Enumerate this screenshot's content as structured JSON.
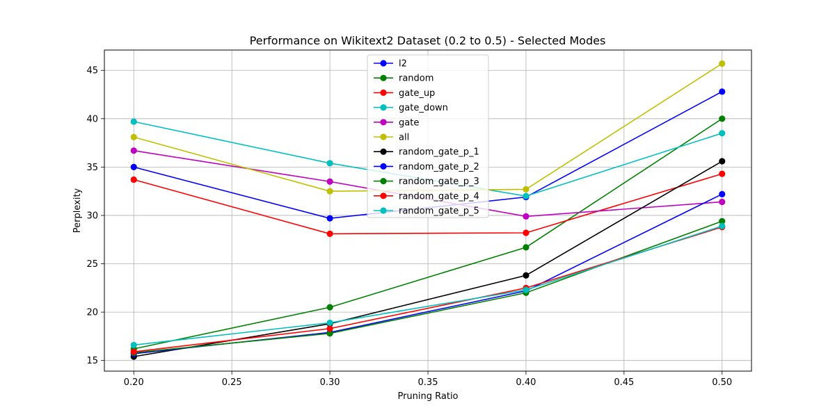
{
  "chart_data": {
    "type": "line",
    "title": "Performance on Wikitext2 Dataset (0.2 to 0.5) - Selected Modes",
    "xlabel": "Pruning Ratio",
    "ylabel": "Perplexity",
    "x": [
      0.2,
      0.3,
      0.4,
      0.5
    ],
    "xlim": [
      0.185,
      0.515
    ],
    "ylim": [
      13.9,
      47.1
    ],
    "xticks": [
      0.2,
      0.25,
      0.3,
      0.35,
      0.4,
      0.45,
      0.5
    ],
    "xtick_labels": [
      "0.20",
      "0.25",
      "0.30",
      "0.35",
      "0.40",
      "0.45",
      "0.50"
    ],
    "yticks": [
      15,
      20,
      25,
      30,
      35,
      40,
      45
    ],
    "ytick_labels": [
      "15",
      "20",
      "25",
      "30",
      "35",
      "40",
      "45"
    ],
    "grid": true,
    "legend_position": "top-center",
    "series": [
      {
        "name": "l2",
        "color": "#0000ff",
        "values": [
          35.0,
          29.7,
          31.9,
          42.8
        ]
      },
      {
        "name": "random",
        "color": "#008000",
        "values": [
          16.2,
          20.5,
          26.7,
          40.0
        ]
      },
      {
        "name": "gate_up",
        "color": "#ff0000",
        "values": [
          33.7,
          28.1,
          28.2,
          34.3
        ]
      },
      {
        "name": "gate_down",
        "color": "#00bfbf",
        "values": [
          39.7,
          35.4,
          32.0,
          38.5
        ]
      },
      {
        "name": "gate",
        "color": "#bf00bf",
        "values": [
          36.7,
          33.5,
          29.9,
          31.4
        ]
      },
      {
        "name": "all",
        "color": "#bfbf00",
        "values": [
          38.1,
          32.5,
          32.7,
          45.7
        ]
      },
      {
        "name": "random_gate_p_1",
        "color": "#000000",
        "values": [
          15.4,
          18.8,
          23.8,
          35.6
        ]
      },
      {
        "name": "random_gate_p_2",
        "color": "#0000ff",
        "values": [
          15.7,
          17.9,
          22.2,
          32.2
        ]
      },
      {
        "name": "random_gate_p_3",
        "color": "#008000",
        "values": [
          15.8,
          17.8,
          22.0,
          29.4
        ]
      },
      {
        "name": "random_gate_p_4",
        "color": "#ff0000",
        "values": [
          15.9,
          18.3,
          22.5,
          28.8
        ]
      },
      {
        "name": "random_gate_p_5",
        "color": "#00bfbf",
        "values": [
          16.6,
          18.9,
          22.3,
          28.9
        ]
      }
    ]
  }
}
